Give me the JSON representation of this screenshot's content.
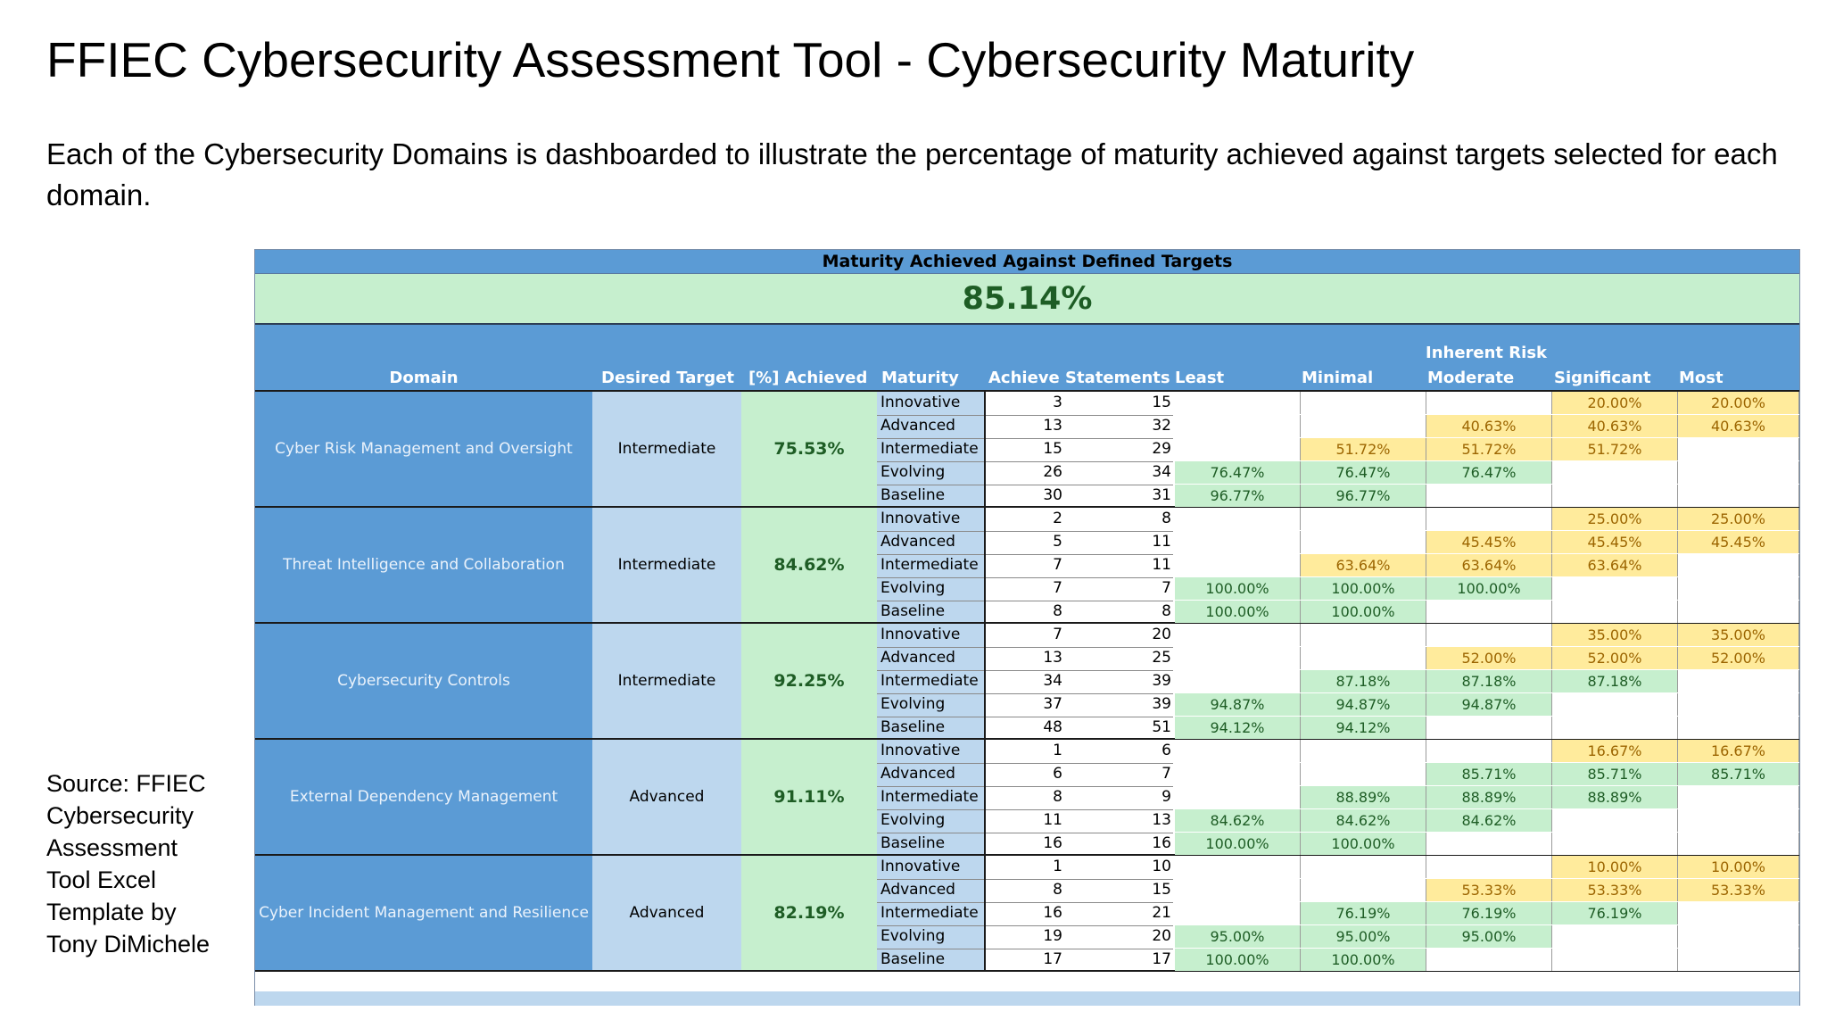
{
  "title": "FFIEC Cybersecurity Assessment Tool - Cybersecurity Maturity",
  "subtitle": "Each of the Cybersecurity Domains is dashboarded to illustrate the percentage of maturity achieved against targets selected for each domain.",
  "source": "Source: FFIEC Cybersecurity Assessment Tool Excel Template by Tony DiMichele",
  "sheet": {
    "title": "Maturity Achieved Against Defined Targets",
    "overall": "85.14%",
    "headers": {
      "domain": "Domain",
      "desired_target": "Desired Target",
      "achieved": "[%] Achieved",
      "maturity": "Maturity",
      "achieve_statements": "Achieve Statements",
      "inherent_risk": "Inherent Risk",
      "least": "Least",
      "minimal": "Minimal",
      "moderate": "Moderate",
      "significant": "Significant",
      "most": "Most"
    },
    "domains": [
      {
        "name": "Cyber Risk Management and Oversight",
        "target": "Intermediate",
        "achieved": "75.53%",
        "rows": [
          {
            "maturity": "Innovative",
            "achieve": "3",
            "statements": "15",
            "least": "",
            "minimal": "",
            "moderate": "",
            "significant": "20.00%",
            "most": "20.00%"
          },
          {
            "maturity": "Advanced",
            "achieve": "13",
            "statements": "32",
            "least": "",
            "minimal": "",
            "moderate": "40.63%",
            "significant": "40.63%",
            "most": "40.63%"
          },
          {
            "maturity": "Intermediate",
            "achieve": "15",
            "statements": "29",
            "least": "",
            "minimal": "51.72%",
            "moderate": "51.72%",
            "significant": "51.72%",
            "most": ""
          },
          {
            "maturity": "Evolving",
            "achieve": "26",
            "statements": "34",
            "least": "76.47%",
            "minimal": "76.47%",
            "moderate": "76.47%",
            "significant": "",
            "most": ""
          },
          {
            "maturity": "Baseline",
            "achieve": "30",
            "statements": "31",
            "least": "96.77%",
            "minimal": "96.77%",
            "moderate": "",
            "significant": "",
            "most": ""
          }
        ]
      },
      {
        "name": "Threat Intelligence and Collaboration",
        "target": "Intermediate",
        "achieved": "84.62%",
        "rows": [
          {
            "maturity": "Innovative",
            "achieve": "2",
            "statements": "8",
            "least": "",
            "minimal": "",
            "moderate": "",
            "significant": "25.00%",
            "most": "25.00%"
          },
          {
            "maturity": "Advanced",
            "achieve": "5",
            "statements": "11",
            "least": "",
            "minimal": "",
            "moderate": "45.45%",
            "significant": "45.45%",
            "most": "45.45%"
          },
          {
            "maturity": "Intermediate",
            "achieve": "7",
            "statements": "11",
            "least": "",
            "minimal": "63.64%",
            "moderate": "63.64%",
            "significant": "63.64%",
            "most": ""
          },
          {
            "maturity": "Evolving",
            "achieve": "7",
            "statements": "7",
            "least": "100.00%",
            "minimal": "100.00%",
            "moderate": "100.00%",
            "significant": "",
            "most": ""
          },
          {
            "maturity": "Baseline",
            "achieve": "8",
            "statements": "8",
            "least": "100.00%",
            "minimal": "100.00%",
            "moderate": "",
            "significant": "",
            "most": ""
          }
        ]
      },
      {
        "name": "Cybersecurity Controls",
        "target": "Intermediate",
        "achieved": "92.25%",
        "rows": [
          {
            "maturity": "Innovative",
            "achieve": "7",
            "statements": "20",
            "least": "",
            "minimal": "",
            "moderate": "",
            "significant": "35.00%",
            "most": "35.00%"
          },
          {
            "maturity": "Advanced",
            "achieve": "13",
            "statements": "25",
            "least": "",
            "minimal": "",
            "moderate": "52.00%",
            "significant": "52.00%",
            "most": "52.00%"
          },
          {
            "maturity": "Intermediate",
            "achieve": "34",
            "statements": "39",
            "least": "",
            "minimal": "87.18%",
            "moderate": "87.18%",
            "significant": "87.18%",
            "most": ""
          },
          {
            "maturity": "Evolving",
            "achieve": "37",
            "statements": "39",
            "least": "94.87%",
            "minimal": "94.87%",
            "moderate": "94.87%",
            "significant": "",
            "most": ""
          },
          {
            "maturity": "Baseline",
            "achieve": "48",
            "statements": "51",
            "least": "94.12%",
            "minimal": "94.12%",
            "moderate": "",
            "significant": "",
            "most": ""
          }
        ]
      },
      {
        "name": "External Dependency Management",
        "target": "Advanced",
        "achieved": "91.11%",
        "rows": [
          {
            "maturity": "Innovative",
            "achieve": "1",
            "statements": "6",
            "least": "",
            "minimal": "",
            "moderate": "",
            "significant": "16.67%",
            "most": "16.67%"
          },
          {
            "maturity": "Advanced",
            "achieve": "6",
            "statements": "7",
            "least": "",
            "minimal": "",
            "moderate": "85.71%",
            "significant": "85.71%",
            "most": "85.71%"
          },
          {
            "maturity": "Intermediate",
            "achieve": "8",
            "statements": "9",
            "least": "",
            "minimal": "88.89%",
            "moderate": "88.89%",
            "significant": "88.89%",
            "most": ""
          },
          {
            "maturity": "Evolving",
            "achieve": "11",
            "statements": "13",
            "least": "84.62%",
            "minimal": "84.62%",
            "moderate": "84.62%",
            "significant": "",
            "most": ""
          },
          {
            "maturity": "Baseline",
            "achieve": "16",
            "statements": "16",
            "least": "100.00%",
            "minimal": "100.00%",
            "moderate": "",
            "significant": "",
            "most": ""
          }
        ]
      },
      {
        "name": "Cyber Incident Management and Resilience",
        "target": "Advanced",
        "achieved": "82.19%",
        "rows": [
          {
            "maturity": "Innovative",
            "achieve": "1",
            "statements": "10",
            "least": "",
            "minimal": "",
            "moderate": "",
            "significant": "10.00%",
            "most": "10.00%"
          },
          {
            "maturity": "Advanced",
            "achieve": "8",
            "statements": "15",
            "least": "",
            "minimal": "",
            "moderate": "53.33%",
            "significant": "53.33%",
            "most": "53.33%"
          },
          {
            "maturity": "Intermediate",
            "achieve": "16",
            "statements": "21",
            "least": "",
            "minimal": "76.19%",
            "moderate": "76.19%",
            "significant": "76.19%",
            "most": ""
          },
          {
            "maturity": "Evolving",
            "achieve": "19",
            "statements": "20",
            "least": "95.00%",
            "minimal": "95.00%",
            "moderate": "95.00%",
            "significant": "",
            "most": ""
          },
          {
            "maturity": "Baseline",
            "achieve": "17",
            "statements": "17",
            "least": "100.00%",
            "minimal": "100.00%",
            "moderate": "",
            "significant": "",
            "most": ""
          }
        ]
      }
    ],
    "colors": {
      "header_blue": "#5b9bd5",
      "target_blue": "#bdd7ee",
      "good_green": "#c6efce",
      "good_green_text": "#1e5d25",
      "neutral_yellow": "#ffeb9c",
      "neutral_yellow_text": "#9c6500"
    }
  }
}
